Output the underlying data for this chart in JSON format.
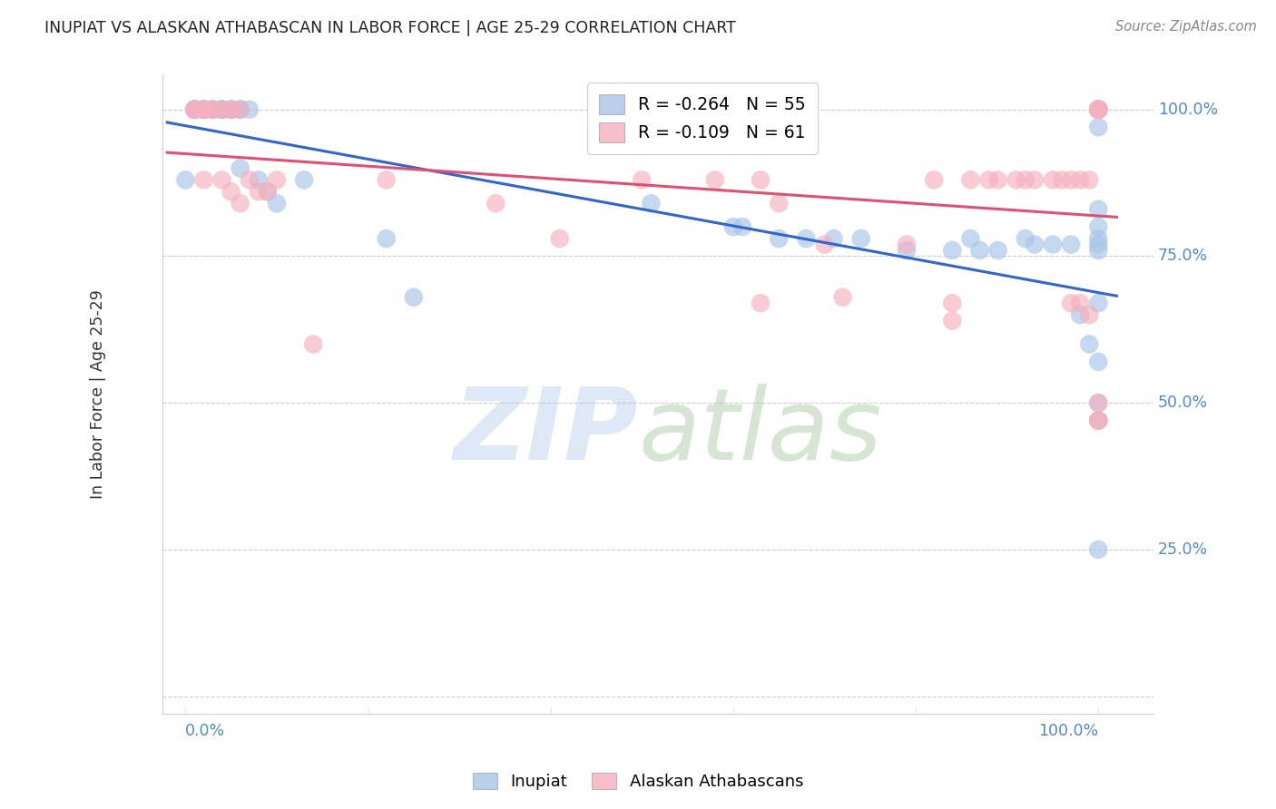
{
  "title": "INUPIAT VS ALASKAN ATHABASCAN IN LABOR FORCE | AGE 25-29 CORRELATION CHART",
  "source": "Source: ZipAtlas.com",
  "ylabel": "In Labor Force | Age 25-29",
  "y_ticks": [
    0.0,
    0.25,
    0.5,
    0.75,
    1.0
  ],
  "y_tick_labels": [
    "",
    "25.0%",
    "50.0%",
    "75.0%",
    "100.0%"
  ],
  "inupiat_R": -0.264,
  "inupiat_N": 55,
  "athabascan_R": -0.109,
  "athabascan_N": 61,
  "inupiat_color": "#a8c4e8",
  "athabascan_color": "#f5b0bf",
  "inupiat_line_color": "#3366cc",
  "athabascan_line_color": "#e05070",
  "legend_label_inupiat": "Inupiat",
  "legend_label_athabascan": "Alaskan Athabascans",
  "inupiat_x": [
    0.0,
    0.01,
    0.01,
    0.01,
    0.02,
    0.02,
    0.02,
    0.02,
    0.03,
    0.03,
    0.03,
    0.04,
    0.04,
    0.04,
    0.05,
    0.05,
    0.06,
    0.06,
    0.06,
    0.07,
    0.08,
    0.09,
    0.1,
    0.13,
    0.22,
    0.25,
    0.51,
    0.6,
    0.61,
    0.65,
    0.68,
    0.71,
    0.74,
    0.79,
    0.84,
    0.86,
    0.87,
    0.89,
    0.92,
    0.93,
    0.95,
    0.97,
    0.98,
    0.99,
    1.0,
    1.0,
    1.0,
    1.0,
    1.0,
    1.0,
    1.0,
    1.0,
    1.0,
    1.0,
    1.0
  ],
  "inupiat_y": [
    0.88,
    1.0,
    1.0,
    1.0,
    1.0,
    1.0,
    1.0,
    1.0,
    1.0,
    1.0,
    1.0,
    1.0,
    1.0,
    1.0,
    1.0,
    1.0,
    1.0,
    1.0,
    0.9,
    1.0,
    0.88,
    0.86,
    0.84,
    0.88,
    0.78,
    0.68,
    0.84,
    0.8,
    0.8,
    0.78,
    0.78,
    0.78,
    0.78,
    0.76,
    0.76,
    0.78,
    0.76,
    0.76,
    0.78,
    0.77,
    0.77,
    0.77,
    0.65,
    0.6,
    0.97,
    0.83,
    0.8,
    0.78,
    0.77,
    0.76,
    0.67,
    0.57,
    0.5,
    0.47,
    0.25
  ],
  "athabascan_x": [
    0.01,
    0.01,
    0.01,
    0.02,
    0.02,
    0.02,
    0.02,
    0.03,
    0.03,
    0.04,
    0.04,
    0.05,
    0.05,
    0.05,
    0.06,
    0.06,
    0.07,
    0.08,
    0.09,
    0.1,
    0.14,
    0.22,
    0.34,
    0.41,
    0.5,
    0.58,
    0.63,
    0.63,
    0.65,
    0.7,
    0.72,
    0.79,
    0.82,
    0.84,
    0.84,
    0.86,
    0.88,
    0.89,
    0.91,
    0.92,
    0.93,
    0.95,
    0.96,
    0.97,
    0.97,
    0.98,
    0.98,
    0.99,
    0.99,
    1.0,
    1.0,
    1.0,
    1.0,
    1.0,
    1.0,
    1.0,
    1.0,
    1.0,
    1.0,
    1.0,
    1.0
  ],
  "athabascan_y": [
    1.0,
    1.0,
    1.0,
    1.0,
    1.0,
    1.0,
    0.88,
    1.0,
    1.0,
    1.0,
    0.88,
    1.0,
    1.0,
    0.86,
    1.0,
    0.84,
    0.88,
    0.86,
    0.86,
    0.88,
    0.6,
    0.88,
    0.84,
    0.78,
    0.88,
    0.88,
    0.88,
    0.67,
    0.84,
    0.77,
    0.68,
    0.77,
    0.88,
    0.67,
    0.64,
    0.88,
    0.88,
    0.88,
    0.88,
    0.88,
    0.88,
    0.88,
    0.88,
    0.88,
    0.67,
    0.88,
    0.67,
    0.88,
    0.65,
    1.0,
    1.0,
    1.0,
    1.0,
    1.0,
    1.0,
    1.0,
    1.0,
    1.0,
    0.47,
    0.47,
    0.5
  ]
}
